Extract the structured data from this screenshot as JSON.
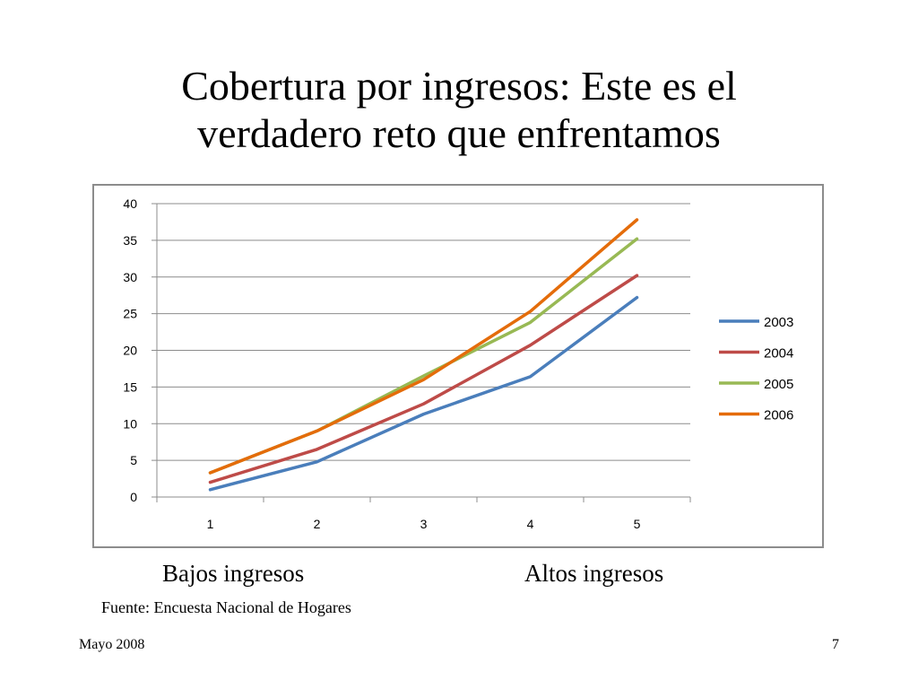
{
  "slide": {
    "title_line1": "Cobertura por ingresos: Este es el",
    "title_line2": "verdadero reto que enfrentamos",
    "note_low": "Bajos ingresos",
    "note_high": "Altos ingresos",
    "source": "Fuente: Encuesta Nacional de Hogares",
    "footer_date": "Mayo 2008",
    "page_number": "7"
  },
  "chart_data": {
    "type": "line",
    "title": "",
    "xlabel": "",
    "ylabel": "",
    "categories": [
      "1",
      "2",
      "3",
      "4",
      "5"
    ],
    "ylim": [
      0,
      40
    ],
    "yticks": [
      0,
      5,
      10,
      15,
      20,
      25,
      30,
      35,
      40
    ],
    "grid": true,
    "legend_position": "right",
    "series": [
      {
        "name": "2003",
        "color": "#4a7ebb",
        "values": [
          1.0,
          4.8,
          11.3,
          16.4,
          27.2
        ]
      },
      {
        "name": "2004",
        "color": "#be4b48",
        "values": [
          2.0,
          6.5,
          12.7,
          20.7,
          30.2
        ]
      },
      {
        "name": "2005",
        "color": "#98b954",
        "values": [
          3.3,
          9.0,
          16.5,
          23.8,
          35.2
        ]
      },
      {
        "name": "2006",
        "color": "#e46c0a",
        "values": [
          3.3,
          9.0,
          16.0,
          25.3,
          37.8
        ]
      }
    ]
  }
}
